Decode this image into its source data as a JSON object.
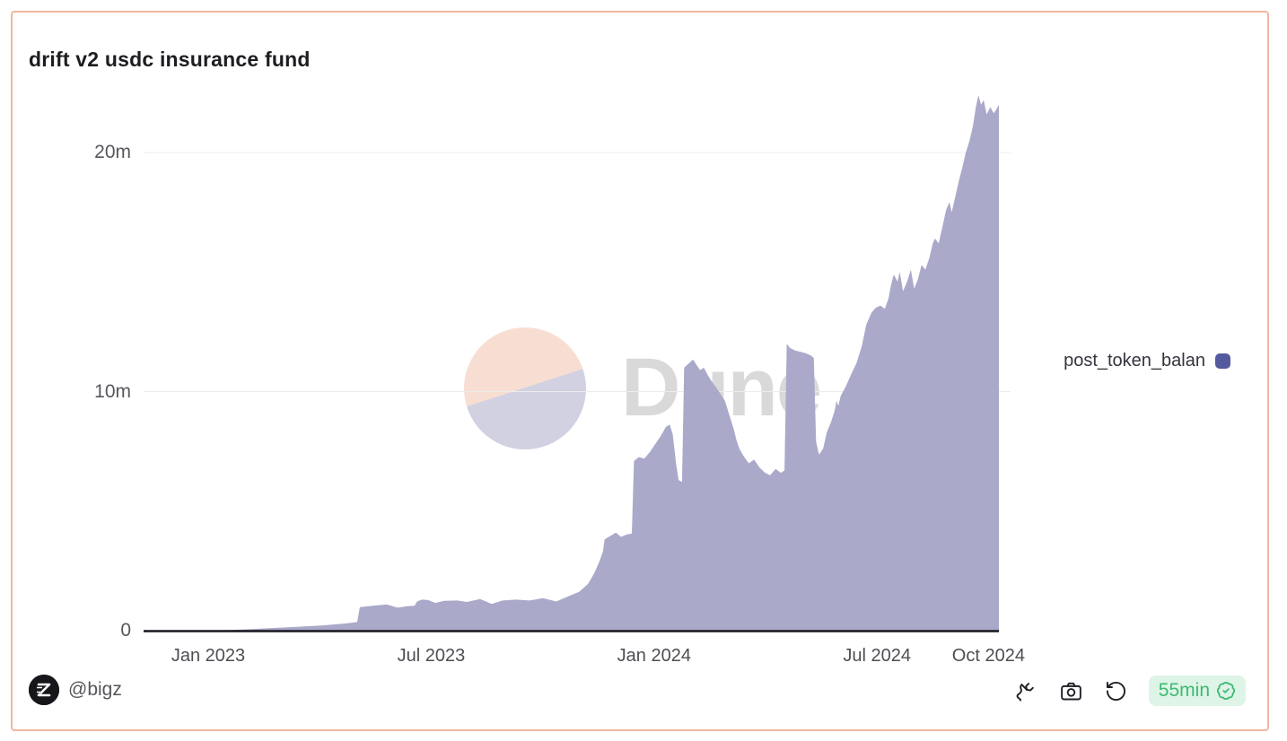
{
  "card": {
    "title": "drift v2 usdc insurance fund",
    "border_color": "#f2b7a2"
  },
  "legend": {
    "label": "post_token_balan",
    "marker_color": "#555a9e"
  },
  "watermark": {
    "text": "Dune",
    "circle_top_color": "#f8ded2",
    "circle_bottom_color": "#d1d1e2"
  },
  "footer": {
    "author": "@bigz",
    "icons": [
      "fork-icon",
      "camera-icon",
      "rotate-ccw-icon"
    ],
    "refresh_badge": {
      "text": "55min",
      "bg": "#ddf4e7",
      "color": "#3cba71",
      "icon": "verified-check-icon"
    }
  },
  "chart_data": {
    "type": "area",
    "title": "drift v2 usdc insurance fund",
    "xlabel": "",
    "ylabel": "",
    "x_unit": "months since Jan 2023",
    "y_unit": "USDC (millions)",
    "ylim": [
      0,
      22.5
    ],
    "x_range_months": [
      -1.73,
      21.28
    ],
    "grid": "horizontal",
    "legend_position": "right",
    "x_ticks": [
      {
        "label": "Jan 2023",
        "m": 0
      },
      {
        "label": "Jul 2023",
        "m": 6
      },
      {
        "label": "Jan 2024",
        "m": 12
      },
      {
        "label": "Jul 2024",
        "m": 18
      },
      {
        "label": "Oct 2024",
        "m": 21
      }
    ],
    "y_ticks": [
      {
        "label": "0",
        "v": 0
      },
      {
        "label": "10m",
        "v": 10
      },
      {
        "label": "20m",
        "v": 20
      }
    ],
    "series": [
      {
        "name": "post_token_balan",
        "fill_color": "#aaa9ca",
        "marker_color": "#555a9e",
        "points": [
          [
            -1.73,
            0.0
          ],
          [
            -0.5,
            0.0
          ],
          [
            0.0,
            0.01
          ],
          [
            0.43,
            0.02
          ],
          [
            0.92,
            0.05
          ],
          [
            1.64,
            0.1
          ],
          [
            2.37,
            0.16
          ],
          [
            3.09,
            0.22
          ],
          [
            3.7,
            0.3
          ],
          [
            4.01,
            0.36
          ],
          [
            4.08,
            0.98
          ],
          [
            4.3,
            1.02
          ],
          [
            4.55,
            1.06
          ],
          [
            4.8,
            1.1
          ],
          [
            5.1,
            0.96
          ],
          [
            5.35,
            1.02
          ],
          [
            5.55,
            1.04
          ],
          [
            5.62,
            1.22
          ],
          [
            5.75,
            1.3
          ],
          [
            5.92,
            1.28
          ],
          [
            6.11,
            1.16
          ],
          [
            6.35,
            1.25
          ],
          [
            6.71,
            1.26
          ],
          [
            6.96,
            1.2
          ],
          [
            7.32,
            1.32
          ],
          [
            7.63,
            1.12
          ],
          [
            7.92,
            1.26
          ],
          [
            8.29,
            1.3
          ],
          [
            8.65,
            1.26
          ],
          [
            9.01,
            1.36
          ],
          [
            9.37,
            1.22
          ],
          [
            9.66,
            1.42
          ],
          [
            9.98,
            1.62
          ],
          [
            10.22,
            1.95
          ],
          [
            10.39,
            2.4
          ],
          [
            10.53,
            2.9
          ],
          [
            10.62,
            3.3
          ],
          [
            10.67,
            3.82
          ],
          [
            10.82,
            3.96
          ],
          [
            10.97,
            4.1
          ],
          [
            11.11,
            3.92
          ],
          [
            11.26,
            4.02
          ],
          [
            11.4,
            4.06
          ],
          [
            11.46,
            7.1
          ],
          [
            11.59,
            7.26
          ],
          [
            11.74,
            7.2
          ],
          [
            11.88,
            7.46
          ],
          [
            12.03,
            7.8
          ],
          [
            12.17,
            8.12
          ],
          [
            12.32,
            8.52
          ],
          [
            12.42,
            8.62
          ],
          [
            12.5,
            8.22
          ],
          [
            12.6,
            6.9
          ],
          [
            12.66,
            6.3
          ],
          [
            12.75,
            6.22
          ],
          [
            12.81,
            11.0
          ],
          [
            12.95,
            11.2
          ],
          [
            13.05,
            11.34
          ],
          [
            13.15,
            11.1
          ],
          [
            13.24,
            10.9
          ],
          [
            13.34,
            11.0
          ],
          [
            13.44,
            10.7
          ],
          [
            13.55,
            10.42
          ],
          [
            13.66,
            10.2
          ],
          [
            13.79,
            9.9
          ],
          [
            13.91,
            9.6
          ],
          [
            14.03,
            9.0
          ],
          [
            14.15,
            8.4
          ],
          [
            14.21,
            8.0
          ],
          [
            14.3,
            7.6
          ],
          [
            14.41,
            7.3
          ],
          [
            14.55,
            7.0
          ],
          [
            14.69,
            7.16
          ],
          [
            14.84,
            6.82
          ],
          [
            14.99,
            6.6
          ],
          [
            15.12,
            6.5
          ],
          [
            15.27,
            6.76
          ],
          [
            15.41,
            6.6
          ],
          [
            15.51,
            6.7
          ],
          [
            15.57,
            12.0
          ],
          [
            15.66,
            11.82
          ],
          [
            15.8,
            11.72
          ],
          [
            15.95,
            11.66
          ],
          [
            16.09,
            11.6
          ],
          [
            16.23,
            11.5
          ],
          [
            16.3,
            11.4
          ],
          [
            16.36,
            7.9
          ],
          [
            16.44,
            7.36
          ],
          [
            16.55,
            7.62
          ],
          [
            16.65,
            8.3
          ],
          [
            16.76,
            8.72
          ],
          [
            16.86,
            9.2
          ],
          [
            16.91,
            9.62
          ],
          [
            16.96,
            9.4
          ],
          [
            17.02,
            9.8
          ],
          [
            17.16,
            10.22
          ],
          [
            17.3,
            10.7
          ],
          [
            17.45,
            11.2
          ],
          [
            17.59,
            11.9
          ],
          [
            17.71,
            12.8
          ],
          [
            17.85,
            13.3
          ],
          [
            17.96,
            13.5
          ],
          [
            18.09,
            13.6
          ],
          [
            18.21,
            13.46
          ],
          [
            18.31,
            13.9
          ],
          [
            18.37,
            14.4
          ],
          [
            18.45,
            14.9
          ],
          [
            18.55,
            14.6
          ],
          [
            18.61,
            15.0
          ],
          [
            18.7,
            14.2
          ],
          [
            18.81,
            14.6
          ],
          [
            18.91,
            15.1
          ],
          [
            19.0,
            14.3
          ],
          [
            19.1,
            14.7
          ],
          [
            19.2,
            15.3
          ],
          [
            19.3,
            15.1
          ],
          [
            19.41,
            15.6
          ],
          [
            19.5,
            16.2
          ],
          [
            19.56,
            16.4
          ],
          [
            19.66,
            16.2
          ],
          [
            19.76,
            16.9
          ],
          [
            19.86,
            17.6
          ],
          [
            19.95,
            17.92
          ],
          [
            20.01,
            17.5
          ],
          [
            20.1,
            18.1
          ],
          [
            20.2,
            18.8
          ],
          [
            20.3,
            19.4
          ],
          [
            20.39,
            20.0
          ],
          [
            20.49,
            20.5
          ],
          [
            20.58,
            21.1
          ],
          [
            20.66,
            21.9
          ],
          [
            20.73,
            22.4
          ],
          [
            20.8,
            22.0
          ],
          [
            20.87,
            22.2
          ],
          [
            20.95,
            21.6
          ],
          [
            21.05,
            21.9
          ],
          [
            21.14,
            21.64
          ],
          [
            21.22,
            21.82
          ],
          [
            21.28,
            22.0
          ]
        ]
      }
    ]
  }
}
